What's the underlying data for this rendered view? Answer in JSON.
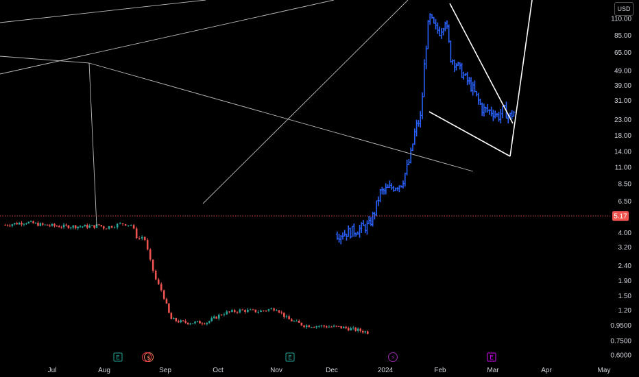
{
  "currency": "USD",
  "chart_data": {
    "type": "candlestick",
    "y_scale": "log",
    "ylim": [
      0.55,
      140
    ],
    "y_ticks": [
      "110.00",
      "85.00",
      "65.00",
      "49.00",
      "39.00",
      "31.00",
      "23.00",
      "18.00",
      "14.00",
      "11.00",
      "8.50",
      "6.50",
      "5.17",
      "4.00",
      "3.20",
      "2.40",
      "1.90",
      "1.50",
      "1.20",
      "0.9500",
      "0.7500",
      "0.6000"
    ],
    "x_ticks": [
      "Jul",
      "Aug",
      "Sep",
      "Oct",
      "Nov",
      "Dec",
      "2024",
      "Feb",
      "Mar",
      "Apr",
      "May"
    ],
    "last_price": "5.17",
    "colors": {
      "up": "#26a69a",
      "down": "#ef5350",
      "overlay": "#2962ff",
      "drawing": "#e0e0e0",
      "badge": "#ef5350"
    },
    "events": [
      {
        "label": "E",
        "icon": "earnings-icon",
        "color": "#26a69a"
      },
      {
        "label": "$",
        "icon": "dividend-icon",
        "color": "#f7825d"
      },
      {
        "label": "E",
        "icon": "earnings-icon",
        "color": "#26a69a"
      },
      {
        "label": "⚡",
        "icon": "split-icon",
        "color": "#9c27b0"
      },
      {
        "label": "E",
        "icon": "earnings-icon",
        "color": "#d500f9"
      }
    ]
  }
}
